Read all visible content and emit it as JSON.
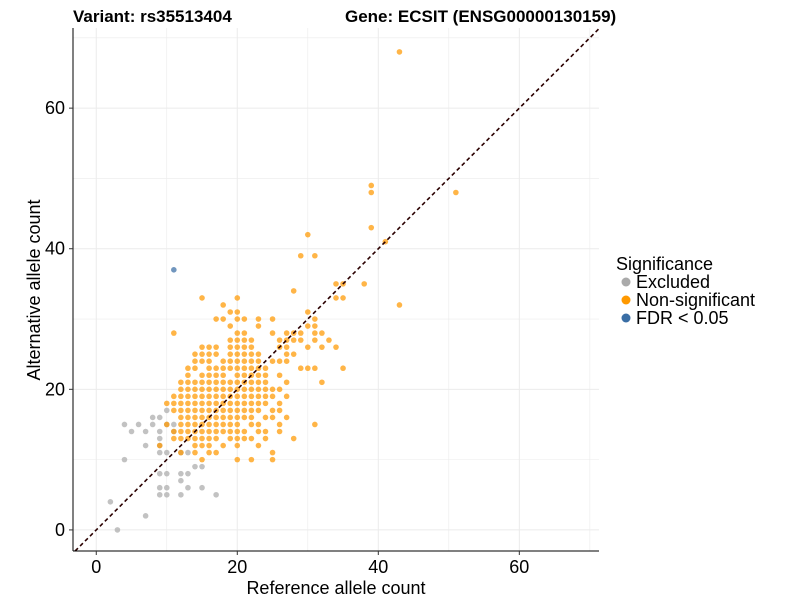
{
  "chart_data": {
    "type": "scatter",
    "title_left": "Variant: rs35513404",
    "title_right": "Gene: ECSIT (ENSG00000130159)",
    "xlabel": "Reference allele count",
    "ylabel": "Alternative allele count",
    "xlim": [
      -3.3,
      71.3
    ],
    "ylim": [
      -3,
      71.4
    ],
    "xticks": [
      0,
      20,
      40,
      60
    ],
    "yticks": [
      0,
      20,
      40,
      60
    ],
    "grid": true,
    "reference_line": "y = x (dashed)",
    "legend": {
      "title": "Significance",
      "placement": "right",
      "entries": [
        {
          "label": "Excluded",
          "color": "#aaaaaa"
        },
        {
          "label": "Non-significant",
          "color": "#ff9900"
        },
        {
          "label": "FDR < 0.05",
          "color": "#3a6ea5"
        }
      ]
    },
    "series": [
      {
        "name": "Excluded",
        "color": "#aaaaaa",
        "points": [
          [
            3,
            0
          ],
          [
            7,
            2
          ],
          [
            2,
            4
          ],
          [
            9,
            5
          ],
          [
            10,
            5
          ],
          [
            12,
            5
          ],
          [
            17,
            5
          ],
          [
            10,
            6
          ],
          [
            9,
            6
          ],
          [
            13,
            6
          ],
          [
            15,
            6
          ],
          [
            12,
            7
          ],
          [
            10,
            8
          ],
          [
            9,
            8
          ],
          [
            12,
            8
          ],
          [
            13,
            8
          ],
          [
            14,
            9
          ],
          [
            15,
            9
          ],
          [
            4,
            10
          ],
          [
            10,
            11
          ],
          [
            9,
            11
          ],
          [
            12,
            11
          ],
          [
            13,
            11
          ],
          [
            7,
            12
          ],
          [
            9,
            12
          ],
          [
            9,
            13
          ],
          [
            5,
            14
          ],
          [
            7,
            14
          ],
          [
            9,
            14
          ],
          [
            11,
            14
          ],
          [
            6,
            15
          ],
          [
            4,
            15
          ],
          [
            8,
            15
          ],
          [
            10,
            15
          ],
          [
            11,
            15
          ],
          [
            8,
            16
          ],
          [
            9,
            16
          ],
          [
            10,
            17
          ]
        ]
      },
      {
        "name": "Non-significant",
        "color": "#ff9900",
        "rows": {
          "10": [
            15,
            20,
            22,
            25
          ],
          "11": [
            12,
            14,
            16,
            17,
            25
          ],
          "12": [
            9,
            14,
            15,
            16,
            18,
            20,
            23
          ],
          "13": [
            11,
            12,
            13,
            14,
            15,
            16,
            17,
            19,
            20,
            21,
            22,
            24,
            28
          ],
          "14": [
            11,
            12,
            13,
            14,
            15,
            16,
            17,
            18,
            19,
            20,
            21,
            23,
            24,
            26
          ],
          "15": [
            10,
            12,
            13,
            14,
            15,
            16,
            17,
            18,
            19,
            20,
            22,
            23,
            26,
            31
          ],
          "16": [
            12,
            13,
            14,
            15,
            16,
            17,
            18,
            19,
            20,
            21,
            22,
            24,
            25,
            27
          ],
          "17": [
            11,
            12,
            13,
            14,
            15,
            16,
            17,
            18,
            19,
            20,
            21,
            22,
            23,
            25,
            26
          ],
          "18": [
            10,
            11,
            12,
            13,
            14,
            15,
            16,
            17,
            18,
            19,
            20,
            21,
            22,
            23,
            24,
            26
          ],
          "19": [
            11,
            12,
            13,
            14,
            15,
            16,
            17,
            18,
            19,
            20,
            21,
            22,
            23,
            24,
            25,
            27
          ],
          "20": [
            12,
            13,
            14,
            15,
            16,
            17,
            18,
            19,
            20,
            21,
            22,
            23,
            24,
            25,
            26
          ],
          "21": [
            12,
            13,
            14,
            15,
            16,
            17,
            18,
            19,
            20,
            21,
            22,
            23,
            24,
            27,
            32
          ],
          "22": [
            13,
            15,
            16,
            17,
            18,
            20,
            21,
            22,
            23,
            24,
            26
          ],
          "23": [
            13,
            14,
            16,
            17,
            18,
            19,
            20,
            21,
            22,
            23,
            24,
            29,
            30,
            31,
            35
          ],
          "24": [
            14,
            15,
            16,
            18,
            19,
            20,
            21,
            22,
            23,
            25,
            26,
            27
          ],
          "25": [
            14,
            15,
            16,
            17,
            19,
            20,
            21,
            22,
            23,
            27,
            28
          ],
          "26": [
            15,
            16,
            17,
            19,
            20,
            21,
            22,
            26,
            27,
            30,
            32,
            34
          ],
          "27": [
            19,
            20,
            21,
            22,
            26,
            27,
            28,
            29,
            31,
            33
          ],
          "28": [
            11,
            20,
            21,
            25,
            27,
            28,
            29,
            31,
            32
          ],
          "29": [
            19,
            23,
            30,
            31
          ],
          "30": [
            17,
            18,
            20,
            21,
            23,
            25,
            31
          ],
          "31": [
            19,
            20,
            30
          ],
          "32": [
            18,
            43
          ],
          "33": [
            15,
            20,
            34,
            35
          ],
          "34": [
            28
          ],
          "35": [
            34,
            35,
            38
          ],
          "39": [
            29,
            31
          ],
          "41": [
            41
          ],
          "42": [
            30
          ],
          "43": [
            39
          ],
          "48": [
            39,
            51
          ],
          "49": [
            39
          ],
          "68": [
            43
          ]
        }
      },
      {
        "name": "FDR < 0.05",
        "color": "#3a6ea5",
        "points": [
          [
            11,
            37
          ]
        ]
      }
    ]
  }
}
